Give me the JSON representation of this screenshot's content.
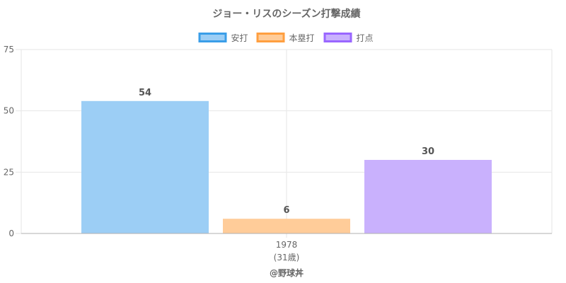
{
  "chart_data": {
    "type": "bar",
    "title": "ジョー・リスのシーズン打撃成績",
    "categories": [
      "1978"
    ],
    "category_sublabels": [
      "(31歳)"
    ],
    "series": [
      {
        "name": "安打",
        "values": [
          54
        ],
        "color": "#9ccef5",
        "border": "#3a9ee8"
      },
      {
        "name": "本塁打",
        "values": [
          6
        ],
        "color": "#ffcc99",
        "border": "#ff9f40"
      },
      {
        "name": "打点",
        "values": [
          30
        ],
        "color": "#c9b1fd",
        "border": "#9966ff"
      }
    ],
    "ylim": [
      0,
      75
    ],
    "yticks": [
      0,
      25,
      50,
      75
    ],
    "grid": true,
    "legend_position": "top",
    "show_data_labels": true
  },
  "footer": {
    "source": "@野球丼"
  }
}
